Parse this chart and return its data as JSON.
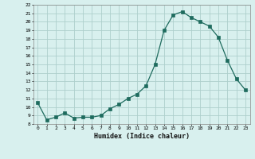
{
  "x": [
    0,
    1,
    2,
    3,
    4,
    5,
    6,
    7,
    8,
    9,
    10,
    11,
    12,
    13,
    14,
    15,
    16,
    17,
    18,
    19,
    20,
    21,
    22,
    23
  ],
  "y": [
    10.5,
    8.5,
    8.8,
    9.3,
    8.7,
    8.8,
    8.8,
    9.0,
    9.8,
    10.3,
    11.0,
    11.5,
    12.5,
    15.0,
    19.0,
    20.8,
    21.2,
    20.5,
    20.0,
    19.5,
    18.2,
    15.5,
    13.3,
    12.0
  ],
  "xlabel": "Humidex (Indice chaleur)",
  "bg_color": "#d8f0ee",
  "grid_color": "#aecfcc",
  "line_color": "#1e6b5e",
  "marker_color": "#1e6b5e",
  "xlim": [
    -0.5,
    23.5
  ],
  "ylim": [
    8,
    22
  ],
  "yticks": [
    8,
    9,
    10,
    11,
    12,
    13,
    14,
    15,
    16,
    17,
    18,
    19,
    20,
    21,
    22
  ],
  "xticks": [
    0,
    1,
    2,
    3,
    4,
    5,
    6,
    7,
    8,
    9,
    10,
    11,
    12,
    13,
    14,
    15,
    16,
    17,
    18,
    19,
    20,
    21,
    22,
    23
  ]
}
